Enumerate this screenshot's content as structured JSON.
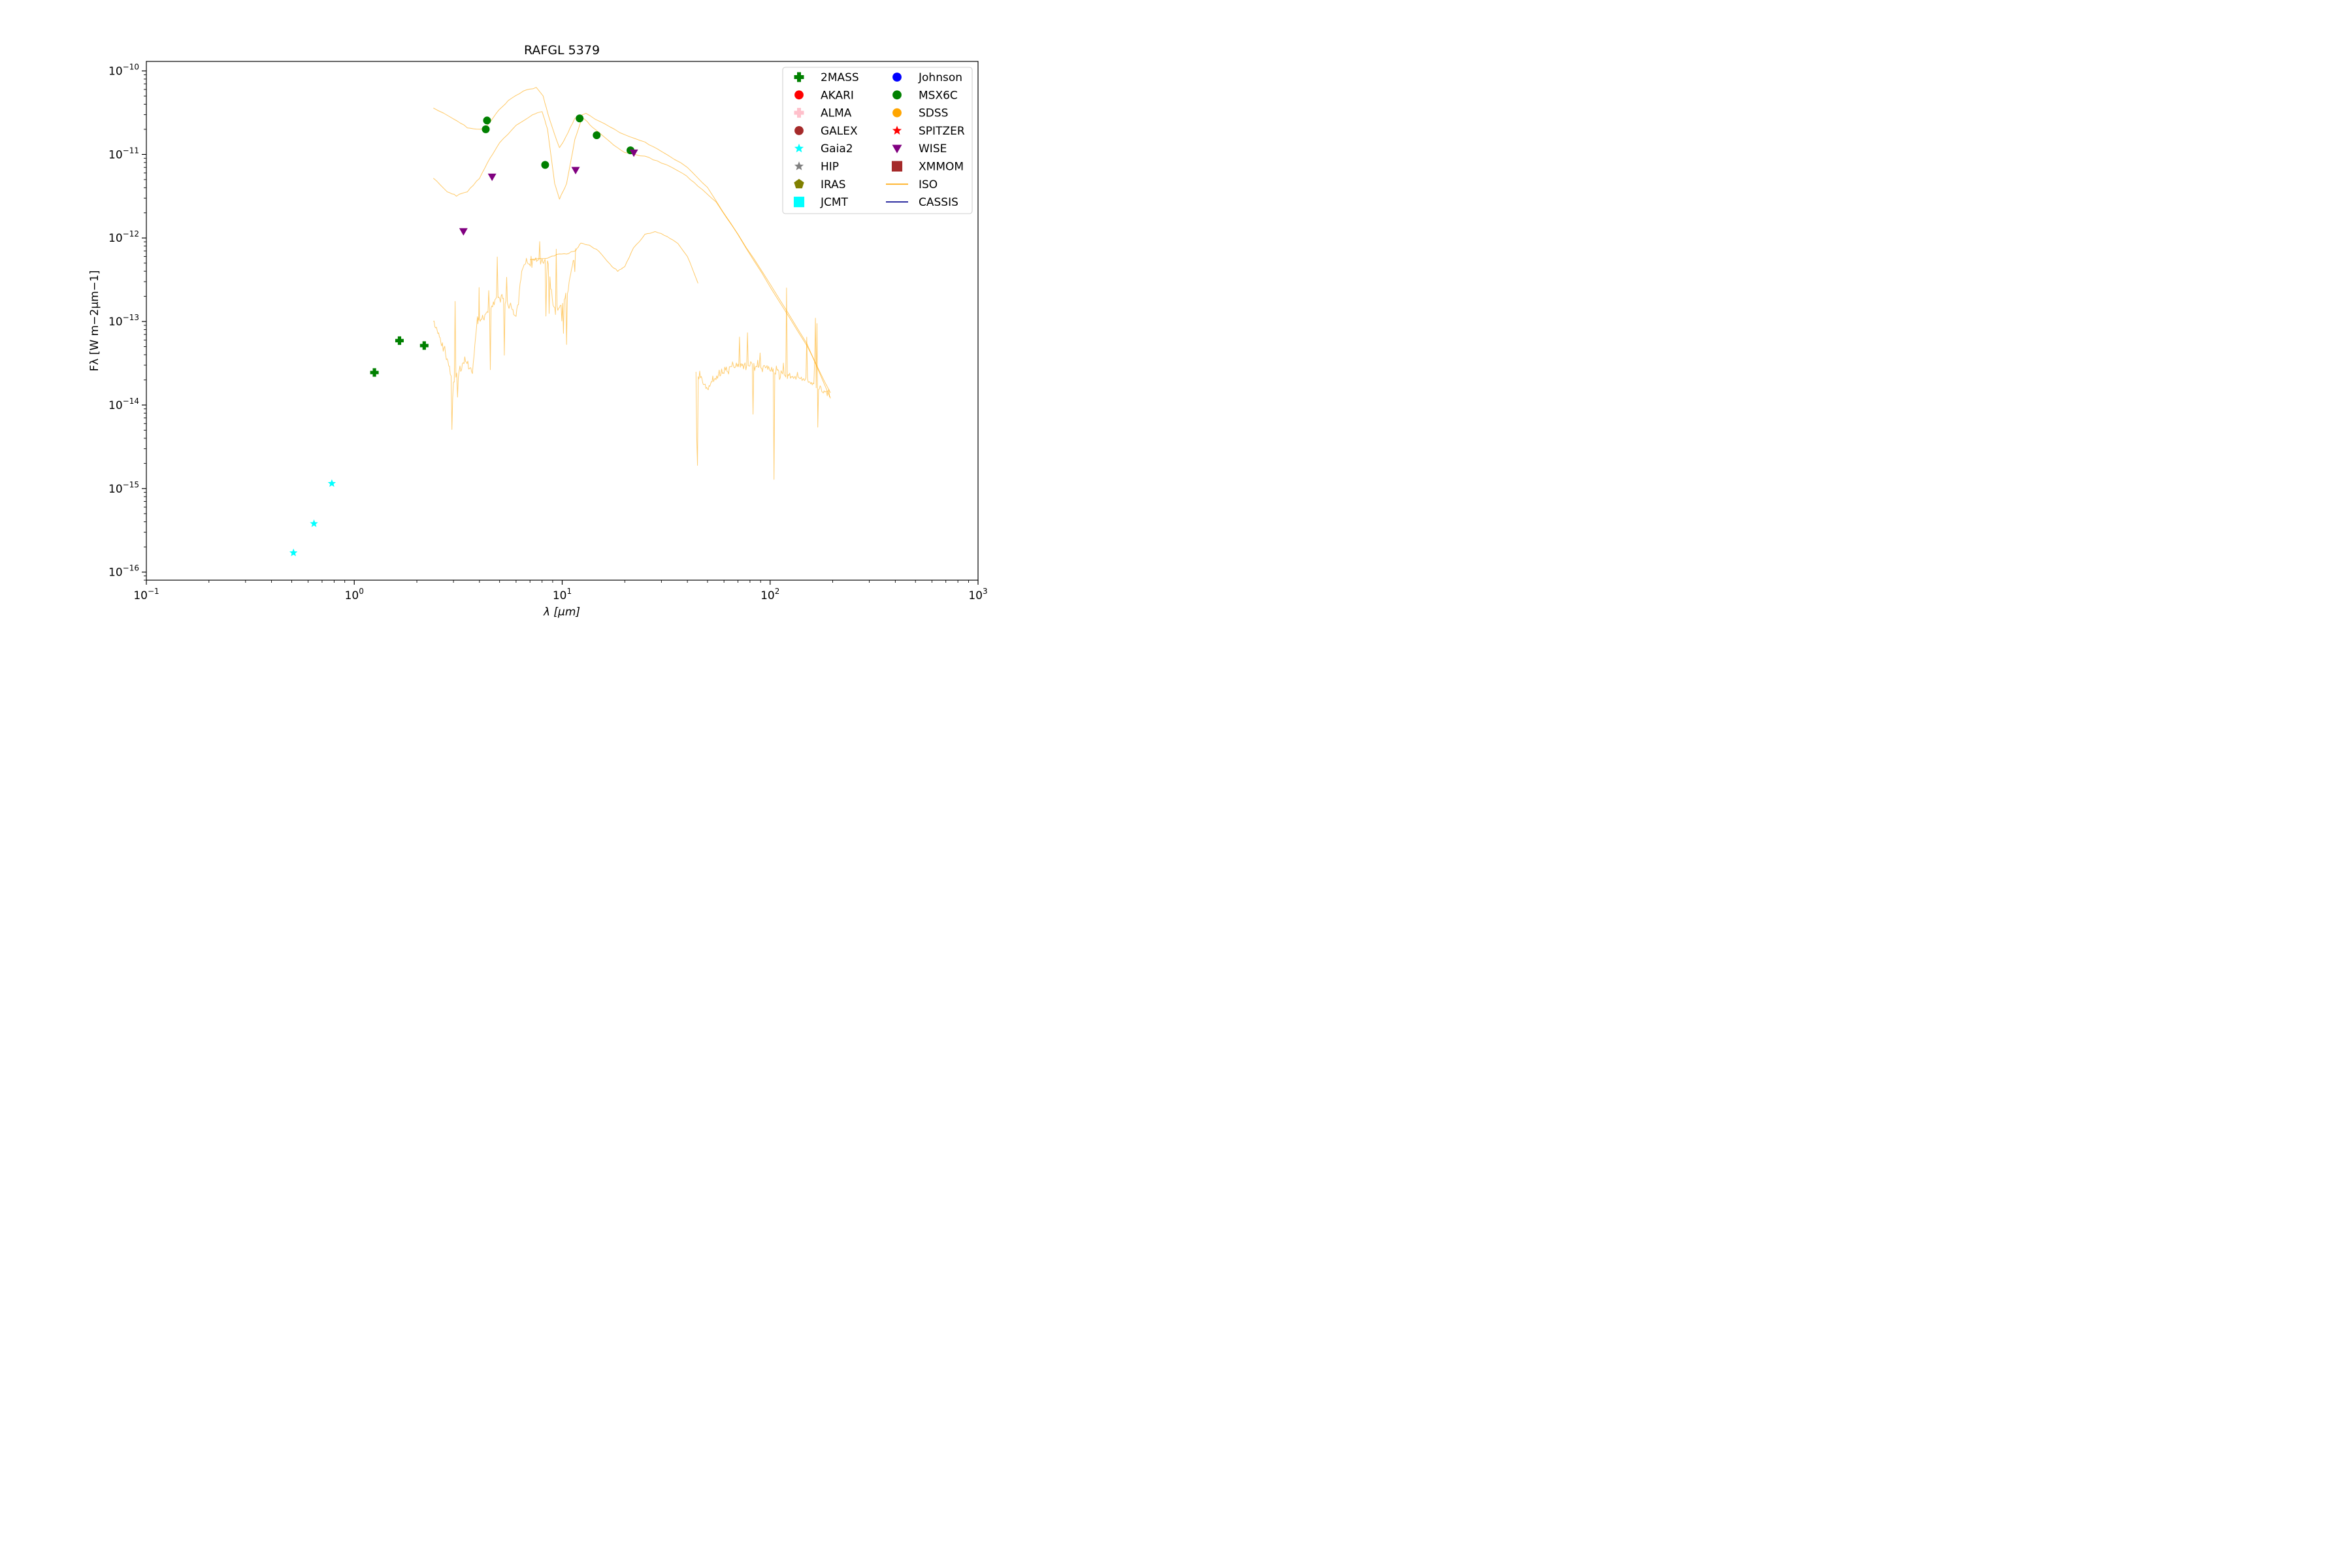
{
  "chart_data": {
    "type": "scatter",
    "title": "RAFGL 5379",
    "xlabel": "λ [μm]",
    "ylabel": "Fλ [W m−2μm−1]",
    "xscale": "log",
    "yscale": "log",
    "xlim": [
      0.1,
      1000
    ],
    "ylim": [
      8e-17,
      1.3e-10
    ],
    "x_ticks": [
      {
        "value": 0.1,
        "label_base": "10",
        "label_exp": "−1"
      },
      {
        "value": 1,
        "label_base": "10",
        "label_exp": "0"
      },
      {
        "value": 10,
        "label_base": "10",
        "label_exp": "1"
      },
      {
        "value": 100,
        "label_base": "10",
        "label_exp": "2"
      },
      {
        "value": 1000,
        "label_base": "10",
        "label_exp": "3"
      }
    ],
    "y_ticks": [
      {
        "value": 1e-16,
        "label_base": "10",
        "label_exp": "−16"
      },
      {
        "value": 1e-15,
        "label_base": "10",
        "label_exp": "−15"
      },
      {
        "value": 1e-14,
        "label_base": "10",
        "label_exp": "−14"
      },
      {
        "value": 1e-13,
        "label_base": "10",
        "label_exp": "−13"
      },
      {
        "value": 1e-12,
        "label_base": "10",
        "label_exp": "−12"
      },
      {
        "value": 1e-11,
        "label_base": "10",
        "label_exp": "−11"
      },
      {
        "value": 1e-10,
        "label_base": "10",
        "label_exp": "−10"
      }
    ],
    "legend_position": "top-right",
    "legend": [
      {
        "name": "2MASS",
        "marker": "plus",
        "color": "#008000"
      },
      {
        "name": "AKARI",
        "marker": "circle",
        "color": "#ff0000"
      },
      {
        "name": "ALMA",
        "marker": "plus",
        "color": "#ffc0cb"
      },
      {
        "name": "GALEX",
        "marker": "circle",
        "color": "#a52a2a"
      },
      {
        "name": "Gaia2",
        "marker": "star",
        "color": "#00ffff"
      },
      {
        "name": "HIP",
        "marker": "star",
        "color": "#808080"
      },
      {
        "name": "IRAS",
        "marker": "pentagon",
        "color": "#808000"
      },
      {
        "name": "JCMT",
        "marker": "square",
        "color": "#00ffff"
      },
      {
        "name": "Johnson",
        "marker": "circle",
        "color": "#0000ff"
      },
      {
        "name": "MSX6C",
        "marker": "circle",
        "color": "#008000"
      },
      {
        "name": "SDSS",
        "marker": "circle",
        "color": "#ffa500"
      },
      {
        "name": "SPITZER",
        "marker": "star",
        "color": "#ff0000"
      },
      {
        "name": "WISE",
        "marker": "triangle-down",
        "color": "#800080"
      },
      {
        "name": "XMMOM",
        "marker": "square",
        "color": "#a52a2a"
      },
      {
        "name": "ISO",
        "marker": "line",
        "color": "#ffa500"
      },
      {
        "name": "CASSIS",
        "marker": "line",
        "color": "#00008b"
      }
    ],
    "series": [
      {
        "name": "2MASS",
        "marker": "plus",
        "color": "#008000",
        "points": [
          [
            1.25,
            2.45e-14
          ],
          [
            1.65,
            5.9e-14
          ],
          [
            2.17,
            5.15e-14
          ]
        ]
      },
      {
        "name": "Gaia2",
        "marker": "star",
        "color": "#00ffff",
        "points": [
          [
            0.51,
            1.7e-16
          ],
          [
            0.64,
            3.8e-16
          ],
          [
            0.78,
            1.15e-15
          ]
        ]
      },
      {
        "name": "MSX6C",
        "marker": "circle",
        "color": "#008000",
        "points": [
          [
            4.29,
            2e-11
          ],
          [
            4.35,
            2.55e-11
          ],
          [
            8.28,
            7.5e-12
          ],
          [
            12.13,
            2.7e-11
          ],
          [
            14.65,
            1.7e-11
          ],
          [
            21.3,
            1.12e-11
          ]
        ]
      },
      {
        "name": "WISE",
        "marker": "triangle-down",
        "color": "#800080",
        "points": [
          [
            3.35,
            1.2e-12
          ],
          [
            4.6,
            5.4e-12
          ],
          [
            11.6,
            6.5e-12
          ],
          [
            22.1,
            1.05e-11
          ]
        ]
      },
      {
        "name": "ISO",
        "marker": "line",
        "color": "#ffa500",
        "lines": [
          {
            "role": "upper",
            "points": [
              [
                2.4,
                3.6e-11
              ],
              [
                3.0,
                2.7e-11
              ],
              [
                3.5,
                2.1e-11
              ],
              [
                4.0,
                2e-11
              ],
              [
                4.3,
                2.1e-11
              ],
              [
                4.8,
                3.1e-11
              ],
              [
                5.5,
                4.4e-11
              ],
              [
                6.5,
                5.8e-11
              ],
              [
                7.5,
                6.3e-11
              ],
              [
                8.1,
                5e-11
              ],
              [
                8.7,
                2.6e-11
              ],
              [
                9.7,
                1.2e-11
              ],
              [
                10.4,
                1.6e-11
              ],
              [
                11.5,
                2.7e-11
              ],
              [
                13.0,
                3.1e-11
              ],
              [
                16.0,
                2.3e-11
              ],
              [
                20.0,
                1.7e-11
              ],
              [
                25.0,
                1.4e-11
              ],
              [
                30.0,
                1.1e-11
              ],
              [
                40.0,
                7e-12
              ],
              [
                50.0,
                4e-12
              ],
              [
                70.0,
                1.1e-12
              ],
              [
                100.0,
                2.6e-13
              ],
              [
                150.0,
                5.2e-14
              ],
              [
                195.0,
                1.4e-14
              ]
            ]
          },
          {
            "role": "lower",
            "points": [
              [
                2.4,
                5.2e-12
              ],
              [
                2.8,
                3.6e-12
              ],
              [
                3.1,
                3.2e-12
              ],
              [
                3.5,
                3.6e-12
              ],
              [
                4.0,
                5.2e-12
              ],
              [
                4.5,
                9e-12
              ],
              [
                5.0,
                1.4e-11
              ],
              [
                6.0,
                2.2e-11
              ],
              [
                7.2,
                3e-11
              ],
              [
                8.0,
                3.3e-11
              ],
              [
                8.5,
                2e-11
              ],
              [
                9.2,
                4.5e-12
              ],
              [
                9.7,
                2.9e-12
              ],
              [
                10.5,
                4.5e-12
              ],
              [
                11.5,
                1.5e-11
              ],
              [
                12.5,
                2.8e-11
              ],
              [
                14.0,
                2.1e-11
              ],
              [
                17.0,
                1.4e-11
              ],
              [
                20.0,
                1.05e-11
              ],
              [
                25.0,
                9.5e-12
              ],
              [
                30.0,
                8e-12
              ],
              [
                38.0,
                6e-12
              ],
              [
                45.0,
                4.2e-12
              ],
              [
                55.0,
                2.7e-12
              ],
              [
                70.0,
                1.1e-12
              ],
              [
                100.0,
                2.8e-13
              ],
              [
                150.0,
                5.5e-14
              ],
              [
                195.0,
                1.2e-14
              ]
            ]
          },
          {
            "role": "mid",
            "points": [
              [
                7.0,
                5.5e-13
              ],
              [
                8.5,
                5.8e-13
              ],
              [
                9.4,
                6.3e-13
              ],
              [
                10.5,
                6.5e-13
              ],
              [
                11.6,
                7e-13
              ],
              [
                12.3,
                8.8e-13
              ],
              [
                13.5,
                8.2e-13
              ],
              [
                15.0,
                7e-13
              ],
              [
                17.0,
                4.8e-13
              ],
              [
                18.5,
                4e-13
              ],
              [
                20.0,
                4.6e-13
              ],
              [
                22.0,
                7.5e-13
              ],
              [
                25.0,
                1.1e-12
              ],
              [
                28.0,
                1.2e-12
              ],
              [
                32.0,
                1.05e-12
              ],
              [
                36.0,
                8.5e-13
              ],
              [
                40.0,
                6e-13
              ],
              [
                45.0,
                2.9e-13
              ]
            ]
          },
          {
            "role": "noisy-short",
            "points": [
              [
                2.4,
                1e-13
              ],
              [
                2.7,
                4.8e-14
              ],
              [
                3.0,
                1.8e-14
              ],
              [
                3.4,
                3.3e-14
              ],
              [
                3.7,
                2.5e-14
              ],
              [
                3.9,
                1e-13
              ],
              [
                4.0,
                1e-13
              ],
              [
                5.0,
                2e-13
              ],
              [
                6.0,
                1.2e-13
              ],
              [
                6.5,
                5e-13
              ],
              [
                8.5,
                5.6e-13
              ],
              [
                9.2,
                1.2e-13
              ],
              [
                10.5,
                2e-13
              ],
              [
                11.6,
                7e-13
              ]
            ]
          },
          {
            "role": "noisy-long",
            "points": [
              [
                44.0,
                2.5e-14
              ],
              [
                47.0,
                2e-14
              ],
              [
                50.0,
                1.5e-14
              ],
              [
                53.0,
                2e-14
              ],
              [
                60.0,
                2.5e-14
              ],
              [
                70.0,
                3e-14
              ],
              [
                85.0,
                3e-14
              ],
              [
                100.0,
                2.7e-14
              ],
              [
                120.0,
                2.3e-14
              ],
              [
                150.0,
                2e-14
              ],
              [
                195.0,
                1.3e-14
              ]
            ]
          }
        ]
      }
    ]
  }
}
